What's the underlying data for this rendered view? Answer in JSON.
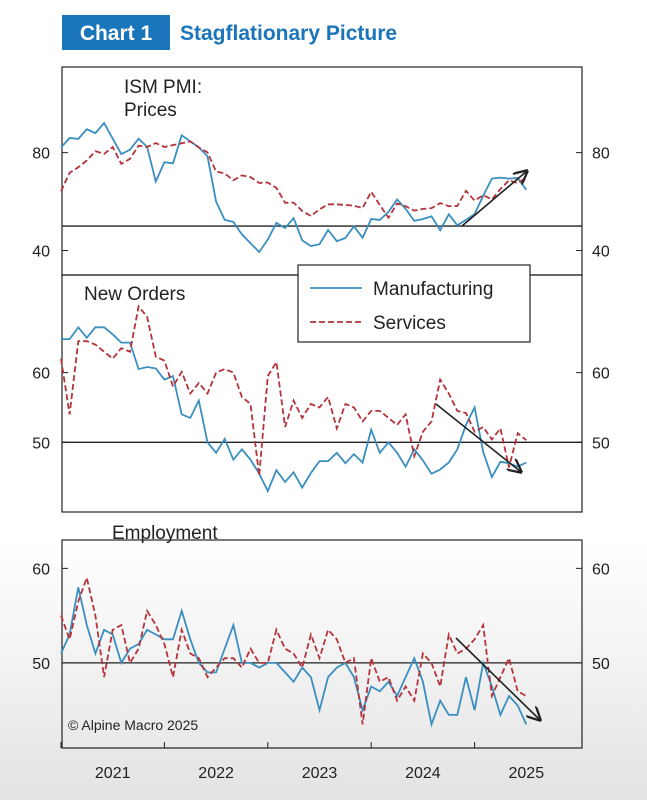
{
  "header": {
    "label": "Chart 1",
    "title": "Stagflationary Picture"
  },
  "source": "© Alpine Macro 2025",
  "chart_data": [
    {
      "type": "line",
      "title": "ISM PMI:\nPrices",
      "x": [
        2021,
        2021.083,
        2021.167,
        2021.25,
        2021.333,
        2021.417,
        2021.5,
        2021.583,
        2021.667,
        2021.75,
        2021.833,
        2021.917,
        2022,
        2022.083,
        2022.167,
        2022.25,
        2022.333,
        2022.417,
        2022.5,
        2022.583,
        2022.667,
        2022.75,
        2022.833,
        2022.917,
        2023,
        2023.083,
        2023.167,
        2023.25,
        2023.333,
        2023.417,
        2023.5,
        2023.583,
        2023.667,
        2023.75,
        2023.833,
        2023.917,
        2024,
        2024.083,
        2024.167,
        2024.25,
        2024.333,
        2024.417,
        2024.5,
        2024.583,
        2024.667,
        2024.75,
        2024.833,
        2024.917,
        2025,
        2025.083,
        2025.167,
        2025.25,
        2025.333,
        2025.417,
        2025.5
      ],
      "series": [
        {
          "name": "Manufacturing",
          "color": "#3a8fc0",
          "style": "solid",
          "values": [
            82.1,
            86,
            85.6,
            89.6,
            88,
            92.1,
            85.7,
            79.4,
            81.2,
            85.7,
            82.4,
            68.2,
            76.1,
            75.6,
            87.1,
            84.6,
            82.2,
            78.5,
            60,
            52.5,
            51.7,
            46.6,
            43,
            39.4,
            44.5,
            51.3,
            49.2,
            53.2,
            44.2,
            41.8,
            42.6,
            48.4,
            43.8,
            45.1,
            49.9,
            45.2,
            52.9,
            52.5,
            55.8,
            60.9,
            57,
            52.1,
            52.9,
            54,
            48.3,
            54.8,
            50.3,
            52.5,
            54.9,
            62.4,
            69.4,
            69.8,
            69.4,
            69.7,
            64.8
          ]
        },
        {
          "name": "Services",
          "color": "#b5333a",
          "style": "dashed",
          "values": [
            64.2,
            71.8,
            74,
            76.8,
            80.6,
            79.5,
            82.3,
            75.4,
            77.5,
            82.9,
            82.3,
            83.9,
            82.3,
            83.1,
            83.8,
            84.6,
            82.1,
            80.1,
            72.3,
            71.5,
            68.7,
            70.7,
            70,
            67.6,
            67.8,
            65.6,
            59.5,
            59.6,
            56.2,
            54.1,
            56.8,
            58.9,
            58.9,
            58.6,
            58.3,
            57.4,
            64,
            58.6,
            53.4,
            59.2,
            58.1,
            56.3,
            57,
            57.3,
            59.4,
            58.1,
            58.2,
            64.4,
            60.4,
            62.6,
            60.9,
            65.1,
            68.7,
            67.5,
            69.9
          ]
        }
      ],
      "xlim": [
        2021,
        2026
      ],
      "ylim": [
        30,
        115
      ],
      "yticks": [
        40,
        80
      ],
      "reference_line": 50
    },
    {
      "type": "line",
      "title": "New Orders",
      "x": [
        2021,
        2021.083,
        2021.167,
        2021.25,
        2021.333,
        2021.417,
        2021.5,
        2021.583,
        2021.667,
        2021.75,
        2021.833,
        2021.917,
        2022,
        2022.083,
        2022.167,
        2022.25,
        2022.333,
        2022.417,
        2022.5,
        2022.583,
        2022.667,
        2022.75,
        2022.833,
        2022.917,
        2023,
        2023.083,
        2023.167,
        2023.25,
        2023.333,
        2023.417,
        2023.5,
        2023.583,
        2023.667,
        2023.75,
        2023.833,
        2023.917,
        2024,
        2024.083,
        2024.167,
        2024.25,
        2024.333,
        2024.417,
        2024.5,
        2024.583,
        2024.667,
        2024.75,
        2024.833,
        2024.917,
        2025,
        2025.083,
        2025.167,
        2025.25,
        2025.333,
        2025.417,
        2025.5
      ],
      "series": [
        {
          "name": "Manufacturing",
          "color": "#3a8fc0",
          "style": "solid",
          "values": [
            64.8,
            64.8,
            66.5,
            65,
            66.5,
            66.5,
            65.5,
            64.3,
            64.3,
            60.5,
            60.8,
            60.6,
            59,
            59.5,
            54,
            53.5,
            56,
            50,
            48.5,
            50.5,
            47.5,
            49,
            47.5,
            45.5,
            43,
            46,
            44.3,
            45.7,
            43.5,
            45.6,
            47.3,
            47.3,
            48.5,
            47,
            48.3,
            47.1,
            51.8,
            48.5,
            50,
            48.5,
            46.5,
            49,
            47.4,
            45.5,
            46.1,
            47.1,
            49,
            52.5,
            55,
            48.6,
            45,
            47.2,
            47,
            46.5,
            47.1
          ]
        },
        {
          "name": "Services",
          "color": "#b5333a",
          "style": "dashed",
          "values": [
            62,
            54,
            64.5,
            64.5,
            64,
            63,
            62,
            63.5,
            63,
            69.5,
            68,
            62.3,
            61.7,
            58,
            60.1,
            57,
            58.5,
            57,
            60,
            60.5,
            60,
            56.5,
            55.5,
            45.2,
            59.5,
            61.5,
            52.2,
            56,
            53.5,
            55.5,
            55,
            56.5,
            52,
            55.5,
            55,
            53,
            54.5,
            54.5,
            53.5,
            52.5,
            54,
            48,
            51.5,
            53,
            59,
            57,
            54.5,
            54.2,
            51.5,
            52.2,
            50.4,
            52,
            46.4,
            51.3,
            50.3
          ]
        }
      ],
      "xlim": [
        2021,
        2026
      ],
      "ylim": [
        40,
        74
      ],
      "yticks": [
        50,
        60
      ],
      "reference_line": 50
    },
    {
      "type": "line",
      "title": "Employment",
      "x": [
        2021,
        2021.083,
        2021.167,
        2021.25,
        2021.333,
        2021.417,
        2021.5,
        2021.583,
        2021.667,
        2021.75,
        2021.833,
        2021.917,
        2022,
        2022.083,
        2022.167,
        2022.25,
        2022.333,
        2022.417,
        2022.5,
        2022.583,
        2022.667,
        2022.75,
        2022.833,
        2022.917,
        2023,
        2023.083,
        2023.167,
        2023.25,
        2023.333,
        2023.417,
        2023.5,
        2023.583,
        2023.667,
        2023.75,
        2023.833,
        2023.917,
        2024,
        2024.083,
        2024.167,
        2024.25,
        2024.333,
        2024.417,
        2024.5,
        2024.583,
        2024.667,
        2024.75,
        2024.833,
        2024.917,
        2025,
        2025.083,
        2025.167,
        2025.25,
        2025.333,
        2025.417,
        2025.5
      ],
      "series": [
        {
          "name": "Manufacturing",
          "color": "#3a8fc0",
          "style": "solid",
          "values": [
            51,
            53,
            58,
            54,
            51,
            53.5,
            53,
            50,
            51.5,
            52,
            53.5,
            53,
            52.5,
            52.5,
            55.5,
            52.5,
            50,
            49,
            49,
            51.5,
            54,
            50,
            50,
            49.5,
            50,
            50,
            49,
            48,
            49.5,
            48.5,
            45,
            48.5,
            49.5,
            50,
            48.5,
            45,
            47.5,
            47,
            48,
            46.5,
            48.5,
            50.5,
            48,
            43.5,
            46,
            44.5,
            44.5,
            48.5,
            45,
            50,
            47.5,
            44.5,
            46.5,
            45.5,
            43.5
          ]
        },
        {
          "name": "Services",
          "color": "#b5333a",
          "style": "dashed",
          "values": [
            55,
            52.5,
            56.5,
            59,
            55,
            48.5,
            53.5,
            54,
            50,
            51.5,
            55.5,
            54,
            52,
            48.5,
            53.5,
            51,
            50.5,
            48.5,
            49.5,
            50.5,
            50.5,
            49.5,
            51.5,
            50,
            50,
            53.5,
            51.5,
            51,
            49.5,
            53,
            50.5,
            53.5,
            52.5,
            50,
            50.5,
            43.5,
            50.5,
            48,
            48.5,
            46,
            47.5,
            46,
            51,
            50,
            47.5,
            53,
            51,
            51.5,
            52.5,
            54,
            46.5,
            48.5,
            50.5,
            47,
            46.5
          ]
        }
      ],
      "xlim": [
        2021,
        2026
      ],
      "ylim": [
        41,
        63
      ],
      "yticks": [
        50,
        60
      ],
      "reference_line": 50,
      "xticks": [
        {
          "value": 2021,
          "label": "2021"
        },
        {
          "value": 2022,
          "label": "2022"
        },
        {
          "value": 2023,
          "label": "2023"
        },
        {
          "value": 2024,
          "label": "2024"
        },
        {
          "value": 2025,
          "label": "2025"
        }
      ]
    }
  ]
}
